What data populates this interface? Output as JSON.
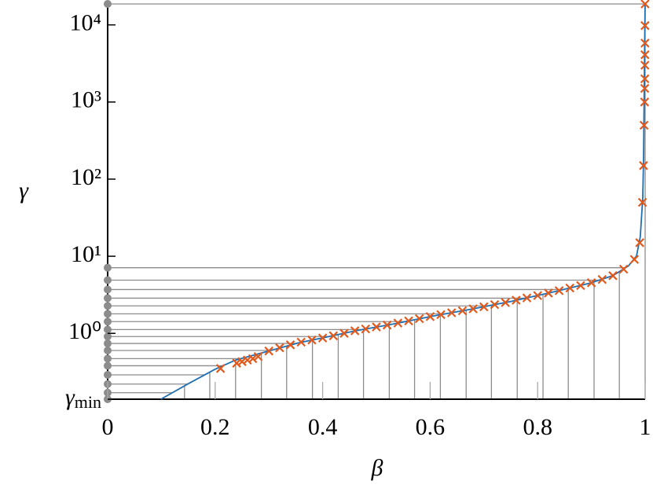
{
  "chart_data": {
    "type": "line",
    "xlabel": "β",
    "ylabel": "γ",
    "xlim": [
      0,
      1
    ],
    "xticks": [
      0,
      0.2,
      0.4,
      0.6,
      0.8,
      1
    ],
    "ylim": [
      0.14,
      18700
    ],
    "log_y": true,
    "yticks": [
      {
        "value": 0.14,
        "label": "γmin"
      },
      {
        "value": 1,
        "label": "10⁰"
      },
      {
        "value": 10,
        "label": "10¹"
      },
      {
        "value": 100,
        "label": "10²"
      },
      {
        "value": 1000,
        "label": "10³"
      },
      {
        "value": 10000,
        "label": "10⁴"
      }
    ],
    "levels": [
      0.14,
      0.17,
      0.22,
      0.29,
      0.38,
      0.47,
      0.6,
      0.74,
      0.91,
      1.12,
      1.42,
      1.79,
      2.27,
      2.86,
      3.7,
      4.9,
      7.1,
      18700
    ],
    "level_color": "#8c8c8c",
    "drops": [
      0.143,
      0.19,
      0.238,
      0.286,
      0.333,
      0.381,
      0.429,
      0.476,
      0.524,
      0.571,
      0.619,
      0.667,
      0.714,
      0.762,
      0.81,
      0.857,
      0.905,
      0.952,
      1
    ],
    "series": [
      {
        "color": "#1f6fb2",
        "marker": "none",
        "x": [
          0.099,
          0.151,
          0.199,
          0.238,
          0.296,
          0.354,
          0.399,
          0.458,
          0.531,
          0.604,
          0.678,
          0.751,
          0.824,
          0.897,
          0.94,
          0.969,
          0.984,
          0.991,
          0.9956,
          0.9971,
          0.9985,
          0.9999
        ],
        "values": [
          0.14,
          0.224,
          0.34,
          0.45,
          0.58,
          0.75,
          0.87,
          1.07,
          1.32,
          1.67,
          2.07,
          2.6,
          3.37,
          4.47,
          5.6,
          7.5,
          10.1,
          18,
          58,
          188,
          1950,
          18700
        ]
      },
      {
        "color": "#e05a1e",
        "marker": "x",
        "x": [
          0.21,
          0.24,
          0.25,
          0.26,
          0.27,
          0.28,
          0.3,
          0.32,
          0.34,
          0.36,
          0.38,
          0.4,
          0.42,
          0.44,
          0.46,
          0.48,
          0.5,
          0.52,
          0.54,
          0.56,
          0.58,
          0.6,
          0.62,
          0.64,
          0.66,
          0.68,
          0.7,
          0.72,
          0.74,
          0.76,
          0.78,
          0.8,
          0.82,
          0.84,
          0.86,
          0.88,
          0.9,
          0.92,
          0.94,
          0.96,
          0.98,
          0.99,
          0.995,
          0.997,
          0.998,
          0.999,
          0.9993,
          0.9995,
          0.9996,
          0.9997,
          0.99975,
          0.9998,
          0.9999
        ],
        "values": [
          0.35,
          0.41,
          0.43,
          0.45,
          0.47,
          0.5,
          0.59,
          0.65,
          0.71,
          0.77,
          0.82,
          0.87,
          0.93,
          1.0,
          1.08,
          1.14,
          1.21,
          1.28,
          1.36,
          1.45,
          1.55,
          1.65,
          1.75,
          1.85,
          1.96,
          2.08,
          2.21,
          2.36,
          2.51,
          2.69,
          2.88,
          3.09,
          3.33,
          3.58,
          3.87,
          4.17,
          4.53,
          5.0,
          5.6,
          6.8,
          9.1,
          15,
          50,
          150,
          500,
          1000,
          1500,
          2000,
          3000,
          4100,
          5800,
          9800,
          18700
        ]
      }
    ]
  }
}
